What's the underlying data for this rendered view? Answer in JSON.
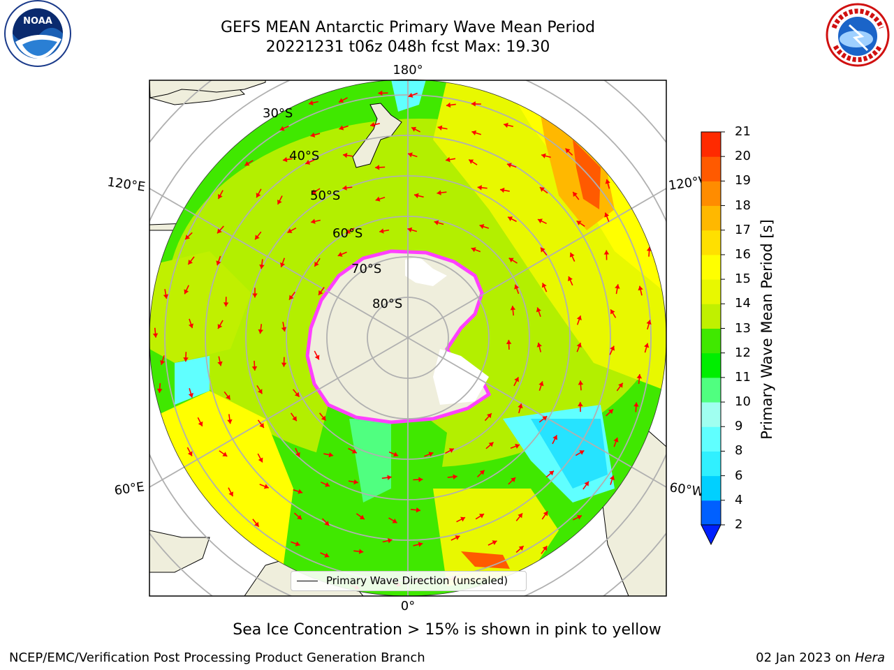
{
  "title_line1": "GEFS MEAN Antarctic Primary Wave Mean Period",
  "title_line2": "20221231 t06z 048h fcst   Max: 19.30",
  "logos": {
    "left": "NOAA",
    "right": "NATIONAL WEATHER SERVICE"
  },
  "map_labels": {
    "lon_180": "180°",
    "lon_0": "0°",
    "lon_120e": "120°E",
    "lon_60e": "60°E",
    "lon_120w": "120°W",
    "lon_60w": "60°W",
    "lat_30": "30°S",
    "lat_40": "40°S",
    "lat_50": "50°S",
    "lat_60": "60°S",
    "lat_70": "70°S",
    "lat_80": "80°S"
  },
  "legend_text": "Primary Wave Direction (unscaled)",
  "colorbar": {
    "title": "Primary Wave Mean Period [s]",
    "ticks": [
      "2",
      "4",
      "6",
      "8",
      "9",
      "10",
      "11",
      "12",
      "13",
      "14",
      "15",
      "16",
      "17",
      "18",
      "19",
      "20",
      "21"
    ],
    "colors": [
      "#0060ff",
      "#00d0ff",
      "#30f0ff",
      "#60ffff",
      "#a0fff0",
      "#50ff80",
      "#00ee00",
      "#40e800",
      "#c0f000",
      "#e8f800",
      "#ffff00",
      "#ffe000",
      "#ffb800",
      "#ff8c00",
      "#ff5a00",
      "#ff2a00",
      "#ff0000"
    ],
    "extend_color": "#0020ff"
  },
  "colors": {
    "ice_pink": "#ff40ff",
    "arrow": "#ff0000",
    "land": "#efeedc"
  },
  "note": "Sea Ice Concentration > 15% is shown in pink to yellow",
  "footer_left": "NCEP/EMC/Verification Post Processing Product Generation Branch",
  "footer_date": "02 Jan 2023 on ",
  "footer_machine": "Hera"
}
